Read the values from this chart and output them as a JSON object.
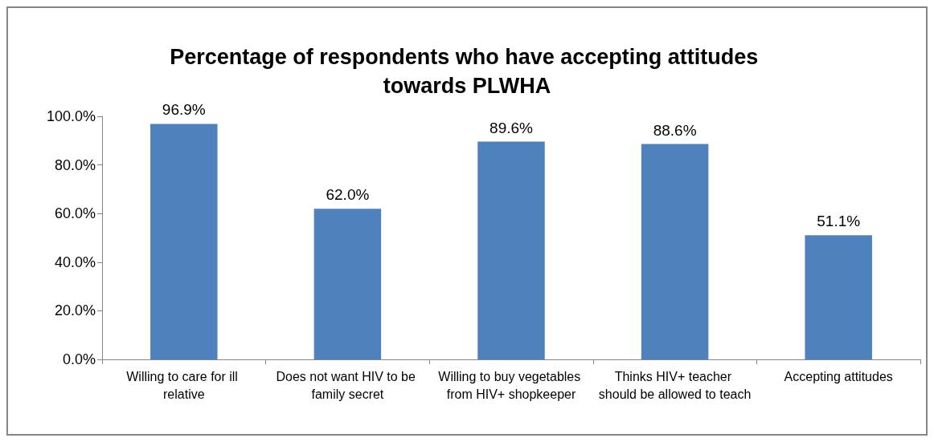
{
  "chart_data": {
    "type": "bar",
    "title": "Percentage of respondents who have accepting attitudes towards PLWHA",
    "categories": [
      "Willing to care for ill relative",
      "Does not want HIV to be family secret",
      "Willing to buy vegetables from HIV+ shopkeeper",
      "Thinks HIV+ teacher should be allowed to teach",
      "Accepting attitudes"
    ],
    "values": [
      96.9,
      62.0,
      89.6,
      88.6,
      51.1
    ],
    "value_labels": [
      "96.9%",
      "62.0%",
      "89.6%",
      "88.6%",
      "51.1%"
    ],
    "color": "#4f81bd",
    "ylim": [
      0,
      100
    ],
    "yticks": [
      {
        "value": 0,
        "label": "0.0%"
      },
      {
        "value": 20,
        "label": "20.0%"
      },
      {
        "value": 40,
        "label": "40.0%"
      },
      {
        "value": 60,
        "label": "60.0%"
      },
      {
        "value": 80,
        "label": "80.0%"
      },
      {
        "value": 100,
        "label": "100.0%"
      }
    ],
    "grid": false
  }
}
